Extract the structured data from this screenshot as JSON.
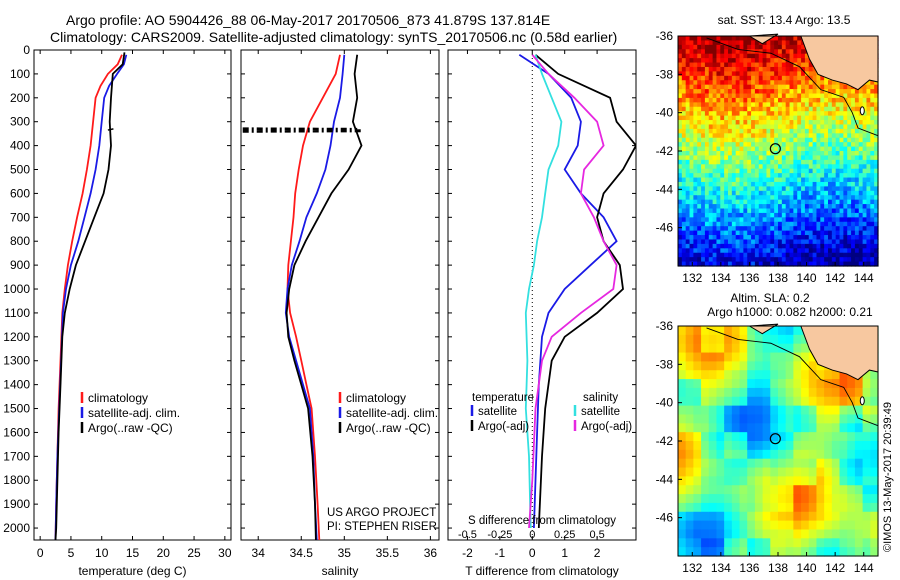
{
  "header": {
    "line1": "Argo profile: AO 5904426_88 06-May-2017 20170506_873 41.879S 137.814E",
    "line2": "Climatology: CARS2009. Satellite-adjusted climatology: synTS_20170506.nc (0.58d earlier)"
  },
  "footer": {
    "project_line1": "US ARGO PROJECT",
    "project_line2": "PI: STEPHEN RISER",
    "stamp": "©IMOS 13-May-2017 20:39:49"
  },
  "colors": {
    "climatology": "#ff1a1a",
    "satellite": "#1a1ae6",
    "argo": "#000000",
    "s_satellite": "#33e0e0",
    "s_argo": "#e628e0"
  },
  "chart_data": [
    {
      "type": "line",
      "id": "temperature",
      "xlabel": "temperature (deg C)",
      "ylabel": "",
      "xlim": [
        -1,
        31
      ],
      "ylim": [
        2050,
        0
      ],
      "xticks": [
        0,
        5,
        10,
        15,
        20,
        25,
        30
      ],
      "yticks": [
        0,
        100,
        200,
        300,
        400,
        500,
        600,
        700,
        800,
        900,
        1000,
        1100,
        1200,
        1300,
        1400,
        1500,
        1600,
        1700,
        1800,
        1900,
        2000
      ],
      "legend": [
        "climatology",
        "satellite-adj. clim.",
        "Argo(..raw -QC)"
      ],
      "legend_position": "lower-right",
      "series": [
        {
          "name": "climatology",
          "color_key": "climatology",
          "points": [
            [
              13.3,
              20
            ],
            [
              12.6,
              60
            ],
            [
              11.0,
              100
            ],
            [
              9.8,
              150
            ],
            [
              9.0,
              200
            ],
            [
              8.6,
              300
            ],
            [
              8.2,
              400
            ],
            [
              7.6,
              500
            ],
            [
              6.9,
              600
            ],
            [
              6.0,
              700
            ],
            [
              5.2,
              800
            ],
            [
              4.5,
              900
            ],
            [
              4.0,
              1000
            ],
            [
              3.6,
              1100
            ],
            [
              3.3,
              1300
            ],
            [
              3.0,
              1500
            ],
            [
              2.8,
              1700
            ],
            [
              2.6,
              1900
            ],
            [
              2.5,
              2050
            ]
          ]
        },
        {
          "name": "satellite-adj. clim.",
          "color_key": "satellite",
          "points": [
            [
              14.0,
              20
            ],
            [
              13.6,
              60
            ],
            [
              12.5,
              100
            ],
            [
              11.2,
              150
            ],
            [
              10.4,
              200
            ],
            [
              10.0,
              300
            ],
            [
              9.6,
              400
            ],
            [
              9.0,
              500
            ],
            [
              8.2,
              600
            ],
            [
              7.2,
              700
            ],
            [
              6.2,
              800
            ],
            [
              5.0,
              900
            ],
            [
              4.2,
              1000
            ],
            [
              3.7,
              1100
            ],
            [
              3.4,
              1300
            ],
            [
              3.1,
              1500
            ],
            [
              2.8,
              1700
            ],
            [
              2.6,
              1900
            ],
            [
              2.5,
              2050
            ]
          ]
        },
        {
          "name": "Argo(..raw -QC)",
          "color_key": "argo",
          "points": [
            [
              13.7,
              10
            ],
            [
              13.4,
              60
            ],
            [
              11.8,
              100
            ],
            [
              11.5,
              200
            ],
            [
              11.3,
              300
            ],
            [
              11.5,
              400
            ],
            [
              11.1,
              500
            ],
            [
              10.3,
              600
            ],
            [
              8.8,
              700
            ],
            [
              7.3,
              800
            ],
            [
              5.8,
              900
            ],
            [
              4.8,
              1000
            ],
            [
              4.0,
              1100
            ],
            [
              3.6,
              1200
            ],
            [
              3.3,
              1400
            ],
            [
              3.0,
              1600
            ],
            [
              2.8,
              1800
            ],
            [
              2.6,
              2000
            ],
            [
              2.5,
              2050
            ]
          ]
        }
      ]
    },
    {
      "type": "line",
      "id": "salinity",
      "xlabel": "salinity",
      "ylabel": "",
      "xlim": [
        33.8,
        36.1
      ],
      "ylim": [
        2050,
        0
      ],
      "xticks": [
        34,
        34.5,
        35,
        35.5,
        36
      ],
      "legend": [
        "climatology",
        "satellite-adj. clim.",
        "Argo(..raw -QC)"
      ],
      "legend_position": "lower-right",
      "series": [
        {
          "name": "climatology",
          "color_key": "climatology",
          "points": [
            [
              34.95,
              20
            ],
            [
              34.9,
              100
            ],
            [
              34.75,
              200
            ],
            [
              34.6,
              300
            ],
            [
              34.52,
              400
            ],
            [
              34.47,
              500
            ],
            [
              34.43,
              600
            ],
            [
              34.41,
              700
            ],
            [
              34.38,
              800
            ],
            [
              34.35,
              900
            ],
            [
              34.34,
              1000
            ],
            [
              34.37,
              1100
            ],
            [
              34.44,
              1200
            ],
            [
              34.5,
              1300
            ],
            [
              34.56,
              1400
            ],
            [
              34.62,
              1500
            ],
            [
              34.66,
              1700
            ],
            [
              34.69,
              1900
            ],
            [
              34.71,
              2050
            ]
          ]
        },
        {
          "name": "satellite-adj. clim.",
          "color_key": "satellite",
          "points": [
            [
              35.0,
              20
            ],
            [
              34.98,
              100
            ],
            [
              34.95,
              200
            ],
            [
              34.88,
              300
            ],
            [
              34.84,
              400
            ],
            [
              34.78,
              500
            ],
            [
              34.68,
              600
            ],
            [
              34.56,
              700
            ],
            [
              34.48,
              800
            ],
            [
              34.39,
              900
            ],
            [
              34.34,
              1000
            ],
            [
              34.32,
              1100
            ],
            [
              34.36,
              1200
            ],
            [
              34.44,
              1300
            ],
            [
              34.52,
              1400
            ],
            [
              34.6,
              1500
            ],
            [
              34.64,
              1700
            ],
            [
              34.66,
              1900
            ],
            [
              34.68,
              2050
            ]
          ]
        },
        {
          "name": "Argo(..raw -QC)",
          "color_key": "argo",
          "points": [
            [
              35.15,
              20
            ],
            [
              35.12,
              100
            ],
            [
              35.15,
              200
            ],
            [
              35.1,
              300
            ],
            [
              35.2,
              400
            ],
            [
              35.05,
              500
            ],
            [
              34.85,
              600
            ],
            [
              34.7,
              700
            ],
            [
              34.55,
              800
            ],
            [
              34.42,
              900
            ],
            [
              34.36,
              1000
            ],
            [
              34.33,
              1100
            ],
            [
              34.35,
              1200
            ],
            [
              34.42,
              1300
            ],
            [
              34.5,
              1400
            ],
            [
              34.58,
              1500
            ],
            [
              34.63,
              1700
            ],
            [
              34.66,
              1900
            ],
            [
              34.67,
              2050
            ]
          ]
        }
      ]
    },
    {
      "type": "line",
      "id": "difference",
      "xlabel": "T difference from climatology",
      "xlabel_top": "S difference from climatology",
      "xlim": [
        -2.6,
        3.2
      ],
      "ylim": [
        2050,
        0
      ],
      "xticks_bottom": [
        -2,
        -1,
        0,
        1,
        2
      ],
      "xticks_top": [
        [
          "-0.5",
          -2
        ],
        [
          "-0.25",
          -1
        ],
        [
          "0",
          0
        ],
        [
          "0.25",
          1
        ],
        [
          "0.5",
          2
        ]
      ],
      "legend_left_title": "temperature",
      "legend_right_title": "salinity",
      "legend": [
        "satellite",
        "Argo(-adj)",
        "satellite",
        "Argo(-adj)"
      ],
      "series": [
        {
          "name": "T satellite",
          "color_key": "satellite",
          "points": [
            [
              -0.4,
              20
            ],
            [
              0.5,
              100
            ],
            [
              1.2,
              200
            ],
            [
              1.5,
              300
            ],
            [
              1.4,
              400
            ],
            [
              1.0,
              500
            ],
            [
              1.5,
              600
            ],
            [
              2.2,
              700
            ],
            [
              2.6,
              800
            ],
            [
              1.8,
              900
            ],
            [
              1.0,
              1000
            ],
            [
              0.5,
              1100
            ],
            [
              0.3,
              1200
            ],
            [
              0.2,
              1400
            ],
            [
              0.15,
              1600
            ],
            [
              0.1,
              1800
            ],
            [
              0.05,
              2000
            ]
          ]
        },
        {
          "name": "T Argo(-adj)",
          "color_key": "argo",
          "points": [
            [
              0.1,
              20
            ],
            [
              0.8,
              100
            ],
            [
              2.4,
              200
            ],
            [
              2.6,
              300
            ],
            [
              3.2,
              400
            ],
            [
              2.8,
              500
            ],
            [
              2.2,
              600
            ],
            [
              2.0,
              700
            ],
            [
              2.2,
              800
            ],
            [
              2.7,
              900
            ],
            [
              2.8,
              1000
            ],
            [
              2.0,
              1100
            ],
            [
              1.0,
              1200
            ],
            [
              0.6,
              1300
            ],
            [
              0.4,
              1500
            ],
            [
              0.3,
              1700
            ],
            [
              0.2,
              2000
            ]
          ]
        },
        {
          "name": "S satellite",
          "color_key": "s_satellite",
          "points": [
            [
              0.1,
              20
            ],
            [
              0.3,
              100
            ],
            [
              0.6,
              200
            ],
            [
              0.9,
              300
            ],
            [
              0.8,
              400
            ],
            [
              0.5,
              500
            ],
            [
              0.4,
              600
            ],
            [
              0.3,
              700
            ],
            [
              0.15,
              800
            ],
            [
              0.05,
              900
            ],
            [
              -0.1,
              1000
            ],
            [
              -0.2,
              1100
            ],
            [
              -0.15,
              1300
            ],
            [
              -0.2,
              1500
            ],
            [
              -0.1,
              1700
            ],
            [
              -0.05,
              2000
            ]
          ]
        },
        {
          "name": "S Argo(-adj)",
          "color_key": "s_argo",
          "points": [
            [
              0.0,
              20
            ],
            [
              0.5,
              100
            ],
            [
              1.3,
              200
            ],
            [
              2.0,
              300
            ],
            [
              2.2,
              400
            ],
            [
              1.6,
              500
            ],
            [
              1.5,
              600
            ],
            [
              1.9,
              700
            ],
            [
              2.2,
              800
            ],
            [
              2.6,
              900
            ],
            [
              2.5,
              1000
            ],
            [
              1.5,
              1100
            ],
            [
              0.6,
              1200
            ],
            [
              0.3,
              1300
            ],
            [
              0.1,
              1500
            ],
            [
              0.0,
              1800
            ],
            [
              -0.1,
              2000
            ]
          ]
        }
      ]
    },
    {
      "type": "heatmap",
      "id": "map_sst",
      "title": "sat. SST: 13.4 Argo: 13.5",
      "xlim": [
        131,
        145
      ],
      "ylim": [
        -48,
        -36
      ],
      "xticks": [
        132,
        134,
        136,
        138,
        140,
        142,
        144
      ],
      "yticks": [
        -36,
        -38,
        -40,
        -42,
        -44,
        -46
      ],
      "marker": [
        137.814,
        -41.879
      ]
    },
    {
      "type": "heatmap",
      "id": "map_sla",
      "title_line1": "Altim. SLA: 0.2",
      "title_line2": "Argo h1000: 0.082 h2000: 0.21",
      "xlim": [
        131,
        145
      ],
      "ylim": [
        -48,
        -36
      ],
      "xticks": [
        132,
        134,
        136,
        138,
        140,
        142,
        144
      ],
      "yticks": [
        -36,
        -38,
        -40,
        -42,
        -44,
        -46
      ],
      "marker": [
        137.814,
        -41.879
      ]
    }
  ]
}
